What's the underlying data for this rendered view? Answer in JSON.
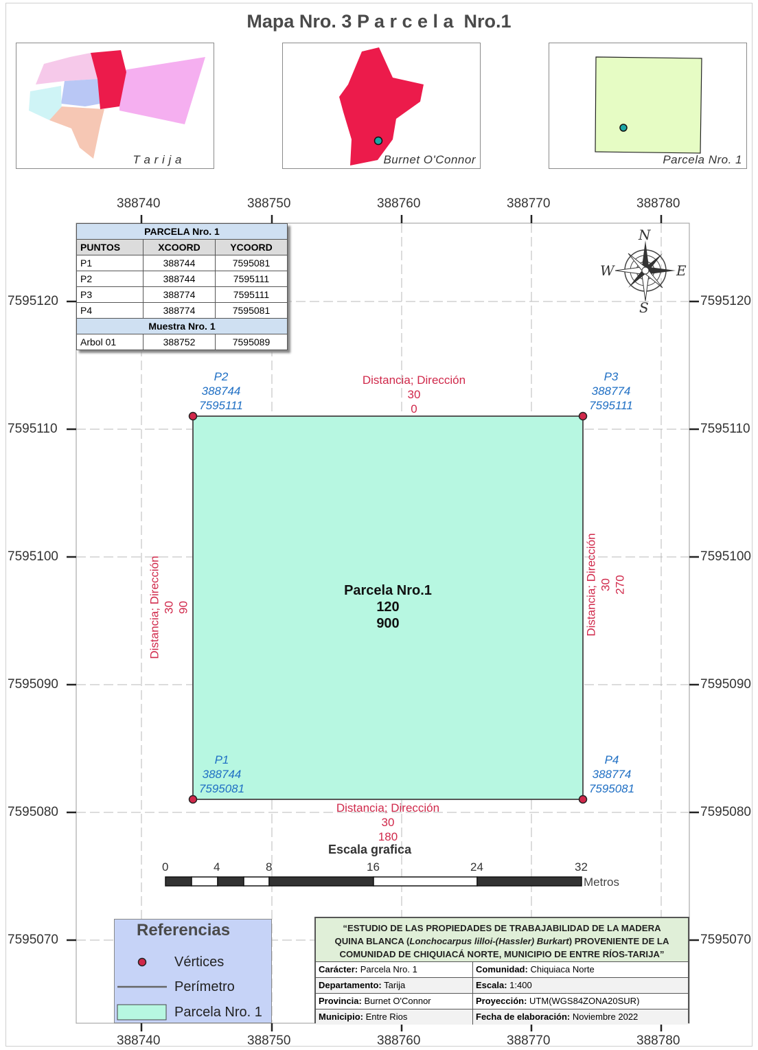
{
  "map_title": "Mapa Nro. 3 P a r c e l a  Nro.1",
  "insets": [
    {
      "label": "T a r i j a"
    },
    {
      "label": "Burnet O'Connor"
    },
    {
      "label": "Parcela  Nro. 1"
    }
  ],
  "axis": {
    "x_ticks": [
      "388740",
      "388750",
      "388760",
      "388770",
      "388780"
    ],
    "y_ticks": [
      "7595120",
      "7595110",
      "7595100",
      "7595090",
      "7595080",
      "7595070"
    ]
  },
  "coord_table": {
    "title": "PARCELA Nro. 1",
    "columns": [
      "PUNTOS",
      "XCOORD",
      "YCOORD"
    ],
    "rows": [
      [
        "P1",
        "388744",
        "7595081"
      ],
      [
        "P2",
        "388744",
        "7595111"
      ],
      [
        "P3",
        "388774",
        "7595111"
      ],
      [
        "P4",
        "388774",
        "7595081"
      ]
    ],
    "sample_title": "Muestra Nro. 1",
    "sample_rows": [
      [
        "Arbol 01",
        "388752",
        "7595089"
      ]
    ]
  },
  "compass": {
    "n": "N",
    "s": "S",
    "e": "E",
    "w": "W"
  },
  "vertices": [
    {
      "name": "P1",
      "x": 388744,
      "y": 7595081,
      "x_text": "388744",
      "y_text": "7595081"
    },
    {
      "name": "P2",
      "x": 388744,
      "y": 7595111,
      "x_text": "388744",
      "y_text": "7595111"
    },
    {
      "name": "P3",
      "x": 388774,
      "y": 7595111,
      "x_text": "388774",
      "y_text": "7595111"
    },
    {
      "name": "P4",
      "x": 388774,
      "y": 7595081,
      "x_text": "388774",
      "y_text": "7595081"
    }
  ],
  "segments": {
    "heading": "Distancia; Dirección",
    "top": {
      "distance": "30",
      "direction": "0"
    },
    "bottom": {
      "distance": "30",
      "direction": "180"
    },
    "left": {
      "distance": "30",
      "direction": "90"
    },
    "right": {
      "distance": "30",
      "direction": "270"
    }
  },
  "parcel": {
    "name": "Parcela Nro.1",
    "perimeter": "120",
    "area": "900"
  },
  "scale_bar": {
    "title": "Escala grafica",
    "ticks": [
      "0",
      "4",
      "8",
      "16",
      "24",
      "32"
    ],
    "unit": "Metros"
  },
  "legend": {
    "title": "Referencias",
    "items": [
      "Vértices",
      "Perímetro",
      "Parcela Nro. 1"
    ]
  },
  "info": {
    "study_title_1": "“ESTUDIO DE LAS PROPIEDADES DE TRABAJABILIDAD DE LA MADERA",
    "study_title_2a": "QUINA BLANCA (",
    "study_title_2b": "Lonchocarpus lilloi-(Hassler) Burkart",
    "study_title_2c": ") PROVENIENTE DE LA",
    "study_title_3": "COMUNIDAD DE CHIQUIACÁ NORTE, MUNICIPIO DE ENTRE RÍOS-TARIJA”",
    "caracter_label": "Carácter:",
    "caracter": "Parcela Nro. 1",
    "comunidad_label": "Comunidad:",
    "comunidad": "Chiquiaca Norte",
    "departamento_label": "Departamento:",
    "departamento": "Tarija",
    "escala_label": "Escala:",
    "escala": "1:400",
    "provincia_label": "Provincia:",
    "provincia": "Burnet O'Connor",
    "proyeccion_label": "Proyección:",
    "proyeccion": "UTM(WGS84ZONA20SUR)",
    "municipio_label": "Municipio:",
    "municipio": "Entre Rios",
    "fecha_label": "Fecha de elaboración:",
    "fecha": "Noviembre 2022"
  },
  "colors": {
    "parcel_fill": "#b7f7e1",
    "vertex": "#d0284a",
    "vertex_label": "#1f6fc4",
    "province": "#ec1b4b",
    "legend_bg": "#c6d3f7"
  }
}
